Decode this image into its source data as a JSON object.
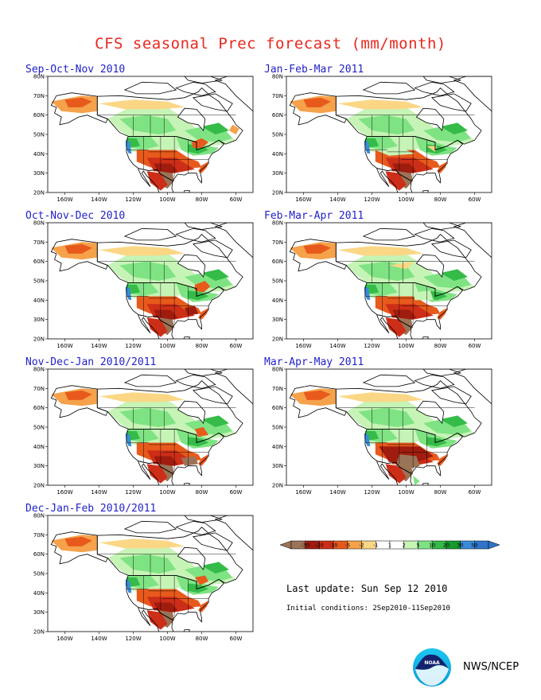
{
  "title": "CFS seasonal Prec forecast (mm/month)",
  "panels": [
    {
      "title": "Sep-Oct-Nov 2010"
    },
    {
      "title": "Jan-Feb-Mar 2011"
    },
    {
      "title": "Oct-Nov-Dec 2010"
    },
    {
      "title": "Feb-Mar-Apr 2011"
    },
    {
      "title": "Nov-Dec-Jan 2010/2011"
    },
    {
      "title": "Mar-Apr-May 2011"
    },
    {
      "title": "Dec-Jan-Feb 2010/2011"
    }
  ],
  "axes": {
    "lat_labels": [
      "80N",
      "70N",
      "60N",
      "50N",
      "40N",
      "30N",
      "20N"
    ],
    "lon_labels": [
      "160W",
      "140W",
      "120W",
      "100W",
      "80W",
      "60W"
    ]
  },
  "legend": {
    "labels": [
      "-30",
      "-20",
      "-10",
      "-5",
      "-2",
      "-1",
      "1",
      "2",
      "5",
      "10",
      "20",
      "30",
      "50"
    ],
    "colors": [
      "#9b7357",
      "#a01c0e",
      "#cd2e18",
      "#e85a1c",
      "#f5a24b",
      "#fbd785",
      "#ffffff",
      "#ffffff",
      "#c6f4b6",
      "#7fe383",
      "#35bb48",
      "#149a2c",
      "#3a8cd8",
      "#2f74c8"
    ]
  },
  "last_update": "Last update: Sun Sep 12 2010",
  "initial_conditions": "Initial conditions: 2Sep2010-11Sep2010",
  "logo": {
    "icon": "noaa-logo-icon",
    "text": "NOAA"
  },
  "agency": "NWS/NCEP"
}
